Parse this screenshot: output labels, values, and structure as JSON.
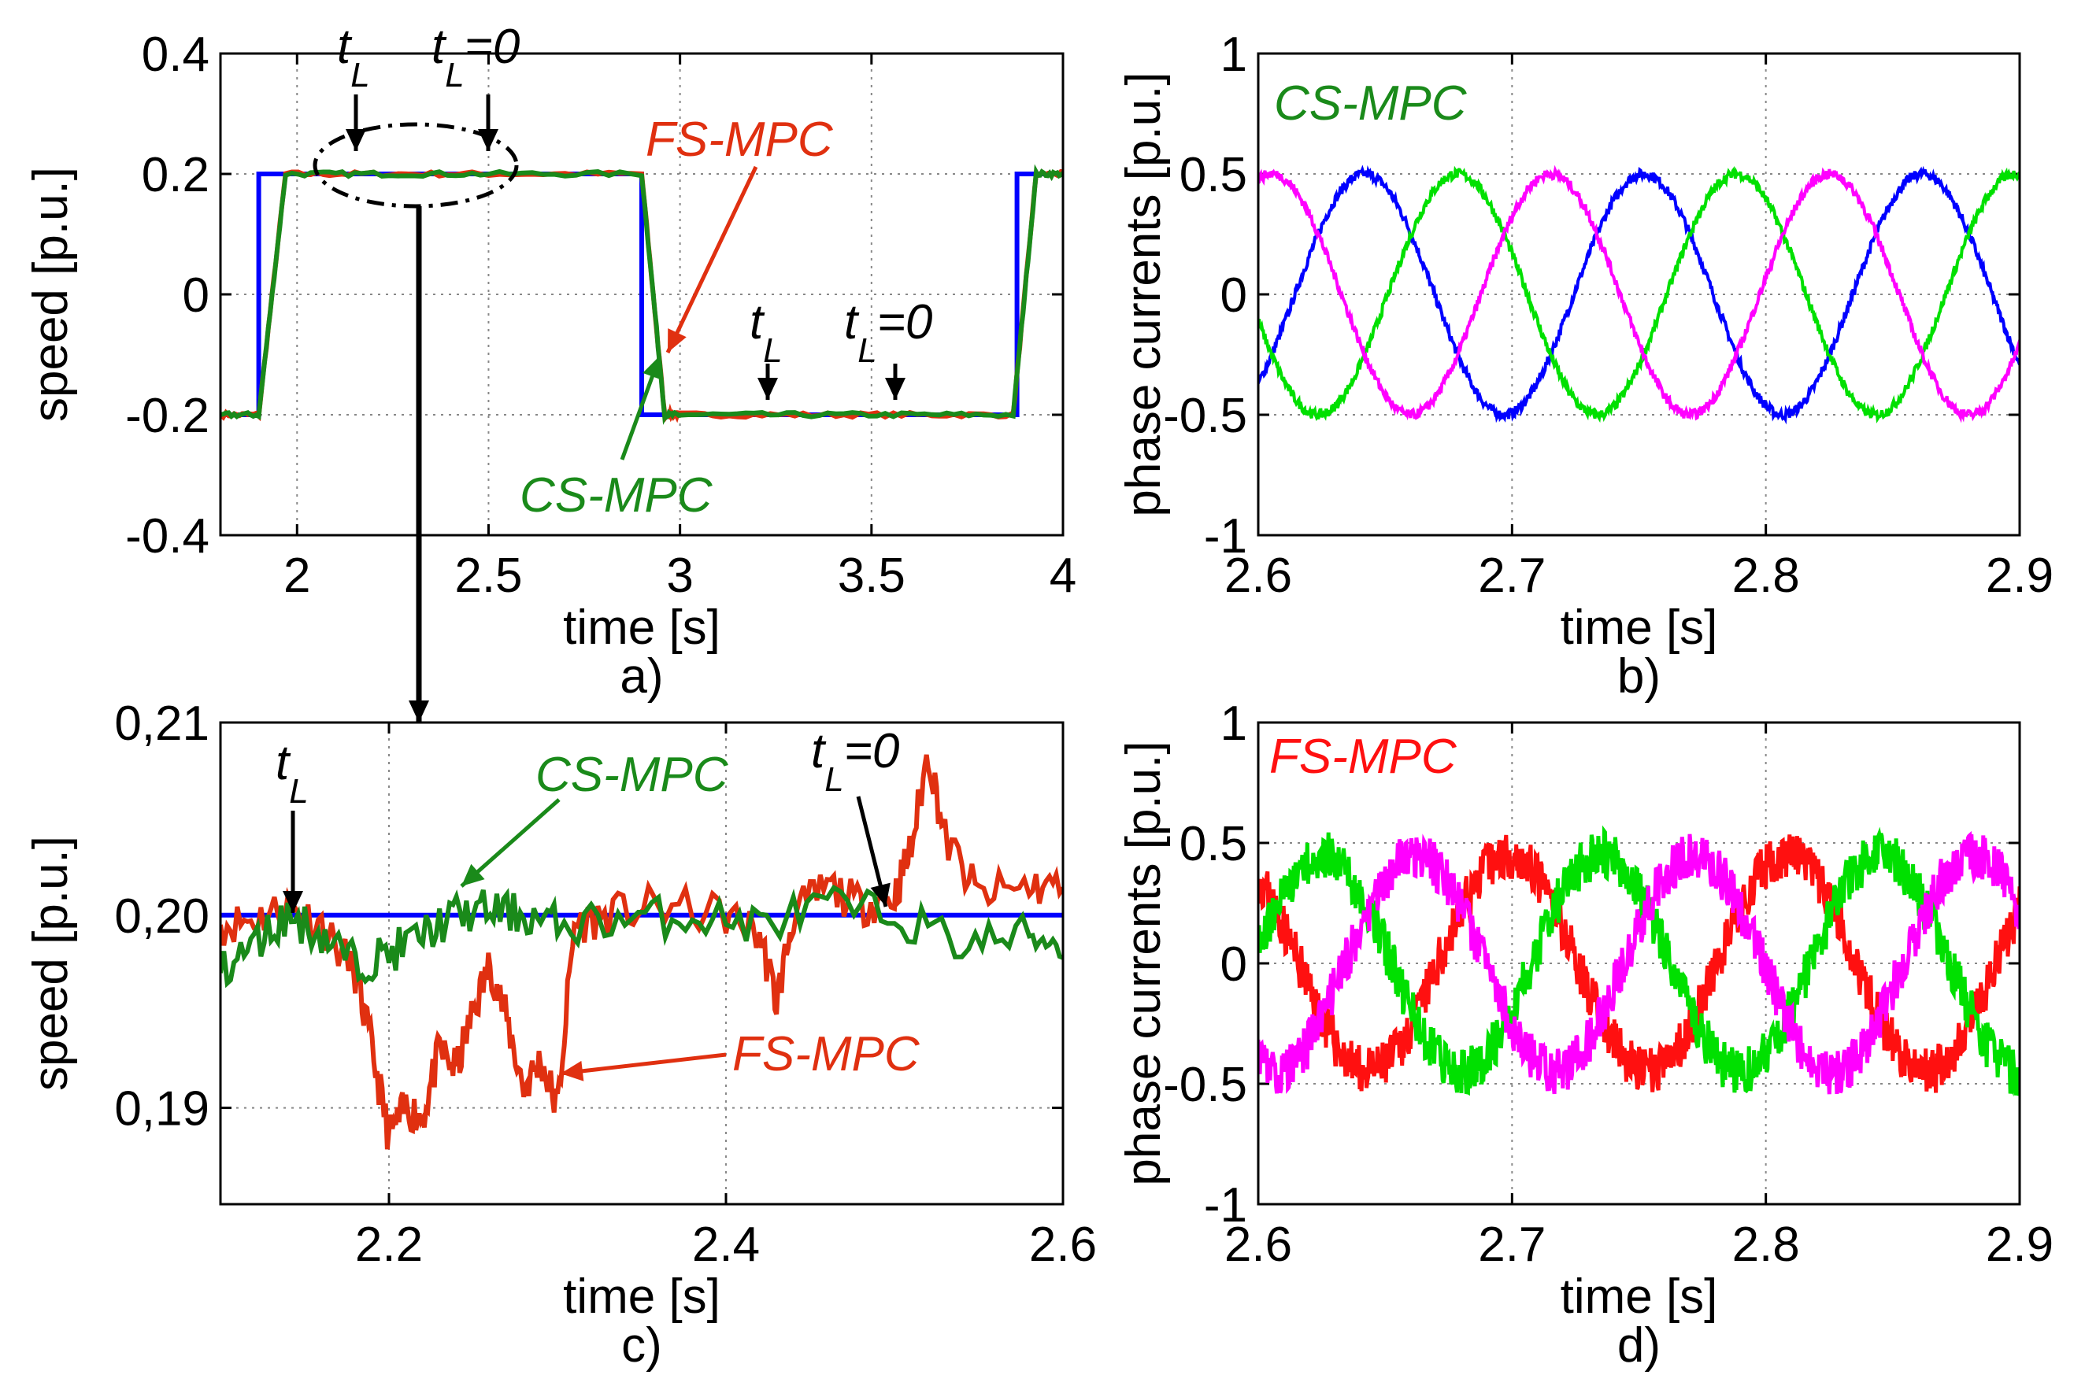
{
  "chart_data": [
    {
      "id": "a",
      "type": "line",
      "caption": "a)",
      "xlabel": "time [s]",
      "ylabel": "speed [p.u.]",
      "xlim": [
        1.8,
        4.0
      ],
      "ylim": [
        -0.4,
        0.4
      ],
      "xticks": [
        "2",
        "2.5",
        "3",
        "3.5",
        "4"
      ],
      "xtick_values": [
        2,
        2.5,
        3,
        3.5,
        4
      ],
      "yticks": [
        "-0.4",
        "-0.2",
        "0",
        "0.2",
        "0.4"
      ],
      "ytick_values": [
        -0.4,
        -0.2,
        0,
        0.2,
        0.4
      ],
      "grid": true,
      "series": [
        {
          "color": "#0000ff",
          "x": [
            1.8,
            1.9,
            1.9,
            2.9,
            2.9,
            3.88,
            3.88,
            4.0
          ],
          "y": [
            -0.2,
            -0.2,
            0.2,
            0.2,
            -0.2,
            -0.2,
            0.2,
            0.2
          ]
        },
        {
          "name": "FS-MPC",
          "color": "#e03010",
          "x": [
            1.8,
            1.9,
            1.97,
            2.2,
            2.5,
            2.9,
            2.96,
            3.0,
            3.3,
            3.6,
            3.87,
            3.93,
            4.0
          ],
          "y": [
            -0.2,
            -0.2,
            0.2,
            0.2,
            0.2,
            0.2,
            -0.2,
            -0.2,
            -0.2,
            -0.2,
            -0.2,
            0.2,
            0.2
          ]
        },
        {
          "name": "CS-MPC",
          "color": "#1a8a1a",
          "x": [
            1.8,
            1.9,
            1.97,
            2.2,
            2.5,
            2.9,
            2.96,
            3.0,
            3.3,
            3.6,
            3.87,
            3.93,
            4.0
          ],
          "y": [
            -0.2,
            -0.2,
            0.2,
            0.2,
            0.2,
            0.2,
            -0.2,
            -0.2,
            -0.2,
            -0.2,
            -0.2,
            0.2,
            0.2
          ]
        }
      ],
      "annotations": {
        "tl_1": "t",
        "tl_1_sub": "L",
        "tl0_1": "t",
        "tl0_1_sub": "L",
        "tl0_1_suffix": "=0",
        "tl_2": "t",
        "tl_2_sub": "L",
        "tl0_2": "t",
        "tl0_2_sub": "L",
        "tl0_2_suffix": "=0",
        "fs_label": "FS-MPC",
        "cs_label": "CS-MPC"
      }
    },
    {
      "id": "b",
      "type": "line",
      "caption": "b)",
      "xlabel": "time [s]",
      "ylabel": "phase currents [p.u.]",
      "xlim": [
        2.6,
        2.9
      ],
      "ylim": [
        -1,
        1
      ],
      "xticks": [
        "2.6",
        "2.7",
        "2.8",
        "2.9"
      ],
      "xtick_values": [
        2.6,
        2.7,
        2.8,
        2.9
      ],
      "yticks": [
        "-1",
        "-0.5",
        "0",
        "0.5",
        "1"
      ],
      "ytick_values": [
        -1,
        -0.5,
        0,
        0.5,
        1
      ],
      "grid": true,
      "label": "CS-MPC",
      "waveform": {
        "amplitude": 0.5,
        "frequency_hz": 9.1,
        "phase_a_deg": 75,
        "colors": [
          "#0000ff",
          "#00e000",
          "#ff00ff"
        ],
        "noise": 0.02
      }
    },
    {
      "id": "c",
      "type": "line",
      "caption": "c)",
      "xlabel": "time [s]",
      "ylabel": "speed [p.u.]",
      "xlim": [
        2.1,
        2.6
      ],
      "ylim": [
        0.185,
        0.21
      ],
      "xticks": [
        "2.2",
        "2.4",
        "2.6"
      ],
      "xtick_values": [
        2.2,
        2.4,
        2.6
      ],
      "yticks": [
        "0,19",
        "0,20",
        "0,21"
      ],
      "ytick_values": [
        0.19,
        0.2,
        0.21
      ],
      "grid": true,
      "series": [
        {
          "color": "#0000ff",
          "x": [
            2.1,
            2.6
          ],
          "y": [
            0.2,
            0.2
          ]
        },
        {
          "name": "FS-MPC",
          "color": "#e03010",
          "x": [
            2.1,
            2.12,
            2.14,
            2.16,
            2.18,
            2.19,
            2.2,
            2.21,
            2.22,
            2.23,
            2.24,
            2.25,
            2.26,
            2.27,
            2.28,
            2.29,
            2.3,
            2.31,
            2.33,
            2.36,
            2.4,
            2.42,
            2.43,
            2.44,
            2.46,
            2.48,
            2.5,
            2.51,
            2.52,
            2.53,
            2.55,
            2.58,
            2.6
          ],
          "y": [
            0.1995,
            0.1998,
            0.2005,
            0.1995,
            0.197,
            0.193,
            0.1885,
            0.19,
            0.1895,
            0.193,
            0.192,
            0.195,
            0.1975,
            0.1945,
            0.191,
            0.1925,
            0.19,
            0.1995,
            0.2,
            0.2005,
            0.2,
            0.199,
            0.1955,
            0.2,
            0.2015,
            0.2005,
            0.201,
            0.2035,
            0.2085,
            0.204,
            0.201,
            0.2015,
            0.2015
          ]
        },
        {
          "name": "CS-MPC",
          "color": "#1a8a1a",
          "x": [
            2.1,
            2.12,
            2.14,
            2.16,
            2.18,
            2.2,
            2.22,
            2.24,
            2.26,
            2.28,
            2.3,
            2.34,
            2.38,
            2.42,
            2.46,
            2.5,
            2.54,
            2.58,
            2.6
          ],
          "y": [
            0.197,
            0.1985,
            0.2,
            0.199,
            0.1975,
            0.198,
            0.199,
            0.2,
            0.2003,
            0.2,
            0.1995,
            0.1998,
            0.2,
            0.1995,
            0.2005,
            0.2,
            0.1985,
            0.199,
            0.1985
          ]
        }
      ],
      "annotations": {
        "tl_1": "t",
        "tl_1_sub": "L",
        "tl0_1": "t",
        "tl0_1_sub": "L",
        "tl0_1_suffix": "=0",
        "fs_label": "FS-MPC",
        "cs_label": "CS-MPC"
      }
    },
    {
      "id": "d",
      "type": "line",
      "caption": "d)",
      "xlabel": "time [s]",
      "ylabel": "phase currents [p.u.]",
      "xlim": [
        2.6,
        2.9
      ],
      "ylim": [
        -1,
        1
      ],
      "xticks": [
        "2.6",
        "2.7",
        "2.8",
        "2.9"
      ],
      "xtick_values": [
        2.6,
        2.7,
        2.8,
        2.9
      ],
      "yticks": [
        "-1",
        "-0.5",
        "0",
        "0.5",
        "1"
      ],
      "ytick_values": [
        -1,
        -0.5,
        0,
        0.5,
        1
      ],
      "grid": true,
      "label": "FS-MPC",
      "waveform": {
        "amplitude": 0.45,
        "frequency_hz": 9.1,
        "phase_a_deg": 250,
        "colors": [
          "#ff1010",
          "#00e000",
          "#ff00ff"
        ],
        "noise": 0.1
      }
    }
  ],
  "colors": {
    "reference": "#0000ff",
    "fs_mpc": "#e03010",
    "cs_mpc": "#1a8a1a",
    "phase_a_b": "#0000ff",
    "phase_b": "#00e000",
    "phase_c": "#ff00ff",
    "phase_a_d": "#ff1010"
  }
}
